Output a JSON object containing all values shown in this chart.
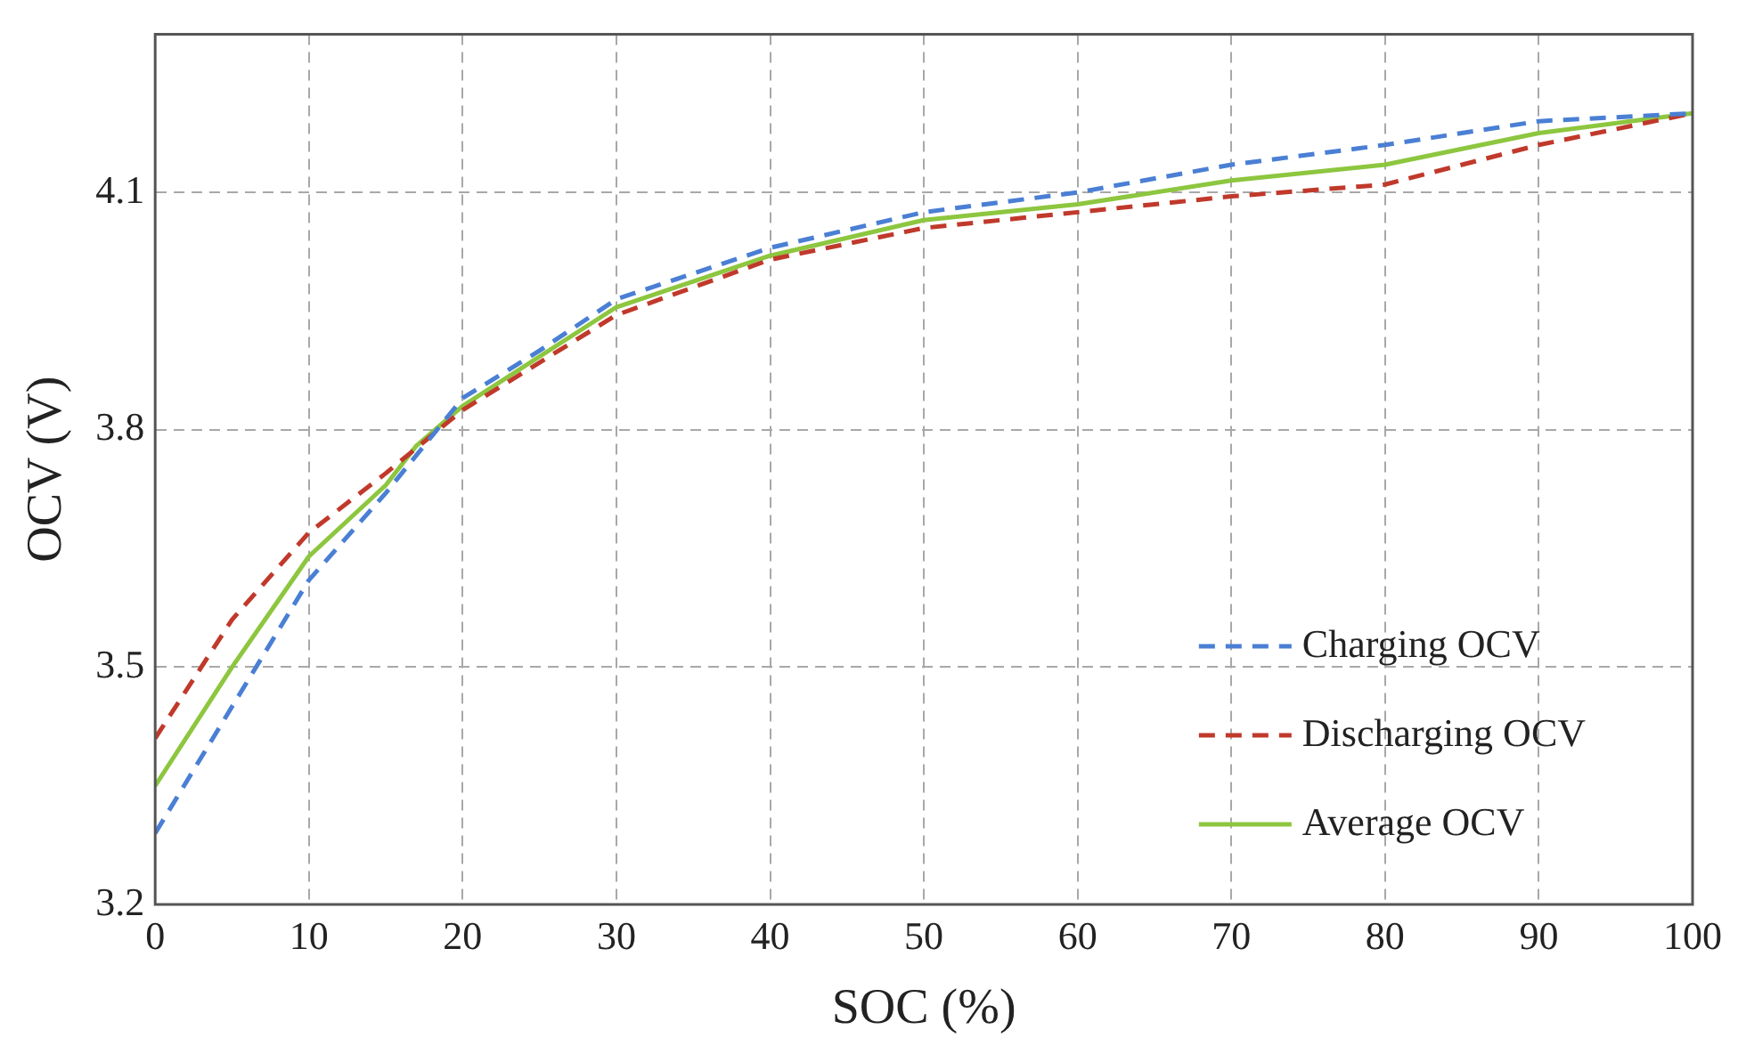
{
  "chart_data": {
    "type": "line",
    "xlabel": "SOC (%)",
    "ylabel": "OCV (V)",
    "xlim": [
      0,
      100
    ],
    "xticks": [
      0,
      10,
      20,
      30,
      40,
      50,
      60,
      70,
      80,
      90,
      100
    ],
    "ylim": [
      3.2,
      4.3
    ],
    "yticks": [
      3.2,
      3.5,
      3.8,
      4.1
    ],
    "grid": true,
    "legend": "bottom right",
    "marker": "none",
    "series": [
      {
        "name": "Charging OCV",
        "color": "#4a7fd4",
        "line_style": "dashed",
        "x": [
          0,
          5,
          10,
          15,
          20,
          25,
          30,
          40,
          50,
          60,
          70,
          80,
          90,
          100
        ],
        "values": [
          3.29,
          3.45,
          3.61,
          3.72,
          3.84,
          3.9,
          3.965,
          4.03,
          4.075,
          4.1,
          4.135,
          4.16,
          4.19,
          4.2
        ]
      },
      {
        "name": "Discharging OCV",
        "color": "#c0392b",
        "line_style": "dashed",
        "x": [
          0,
          5,
          10,
          15,
          20,
          30,
          40,
          50,
          60,
          70,
          80,
          90,
          100
        ],
        "values": [
          3.41,
          3.56,
          3.67,
          3.745,
          3.825,
          3.945,
          4.015,
          4.055,
          4.075,
          4.095,
          4.11,
          4.16,
          4.2
        ]
      },
      {
        "name": "Average OCV",
        "color": "#8dc63f",
        "line_style": "solid",
        "x": [
          0,
          5,
          10,
          15,
          17,
          20,
          30,
          40,
          50,
          60,
          70,
          80,
          90,
          100
        ],
        "values": [
          3.35,
          3.5,
          3.64,
          3.73,
          3.78,
          3.83,
          3.955,
          4.02,
          4.065,
          4.085,
          4.115,
          4.135,
          4.175,
          4.2
        ]
      }
    ]
  }
}
